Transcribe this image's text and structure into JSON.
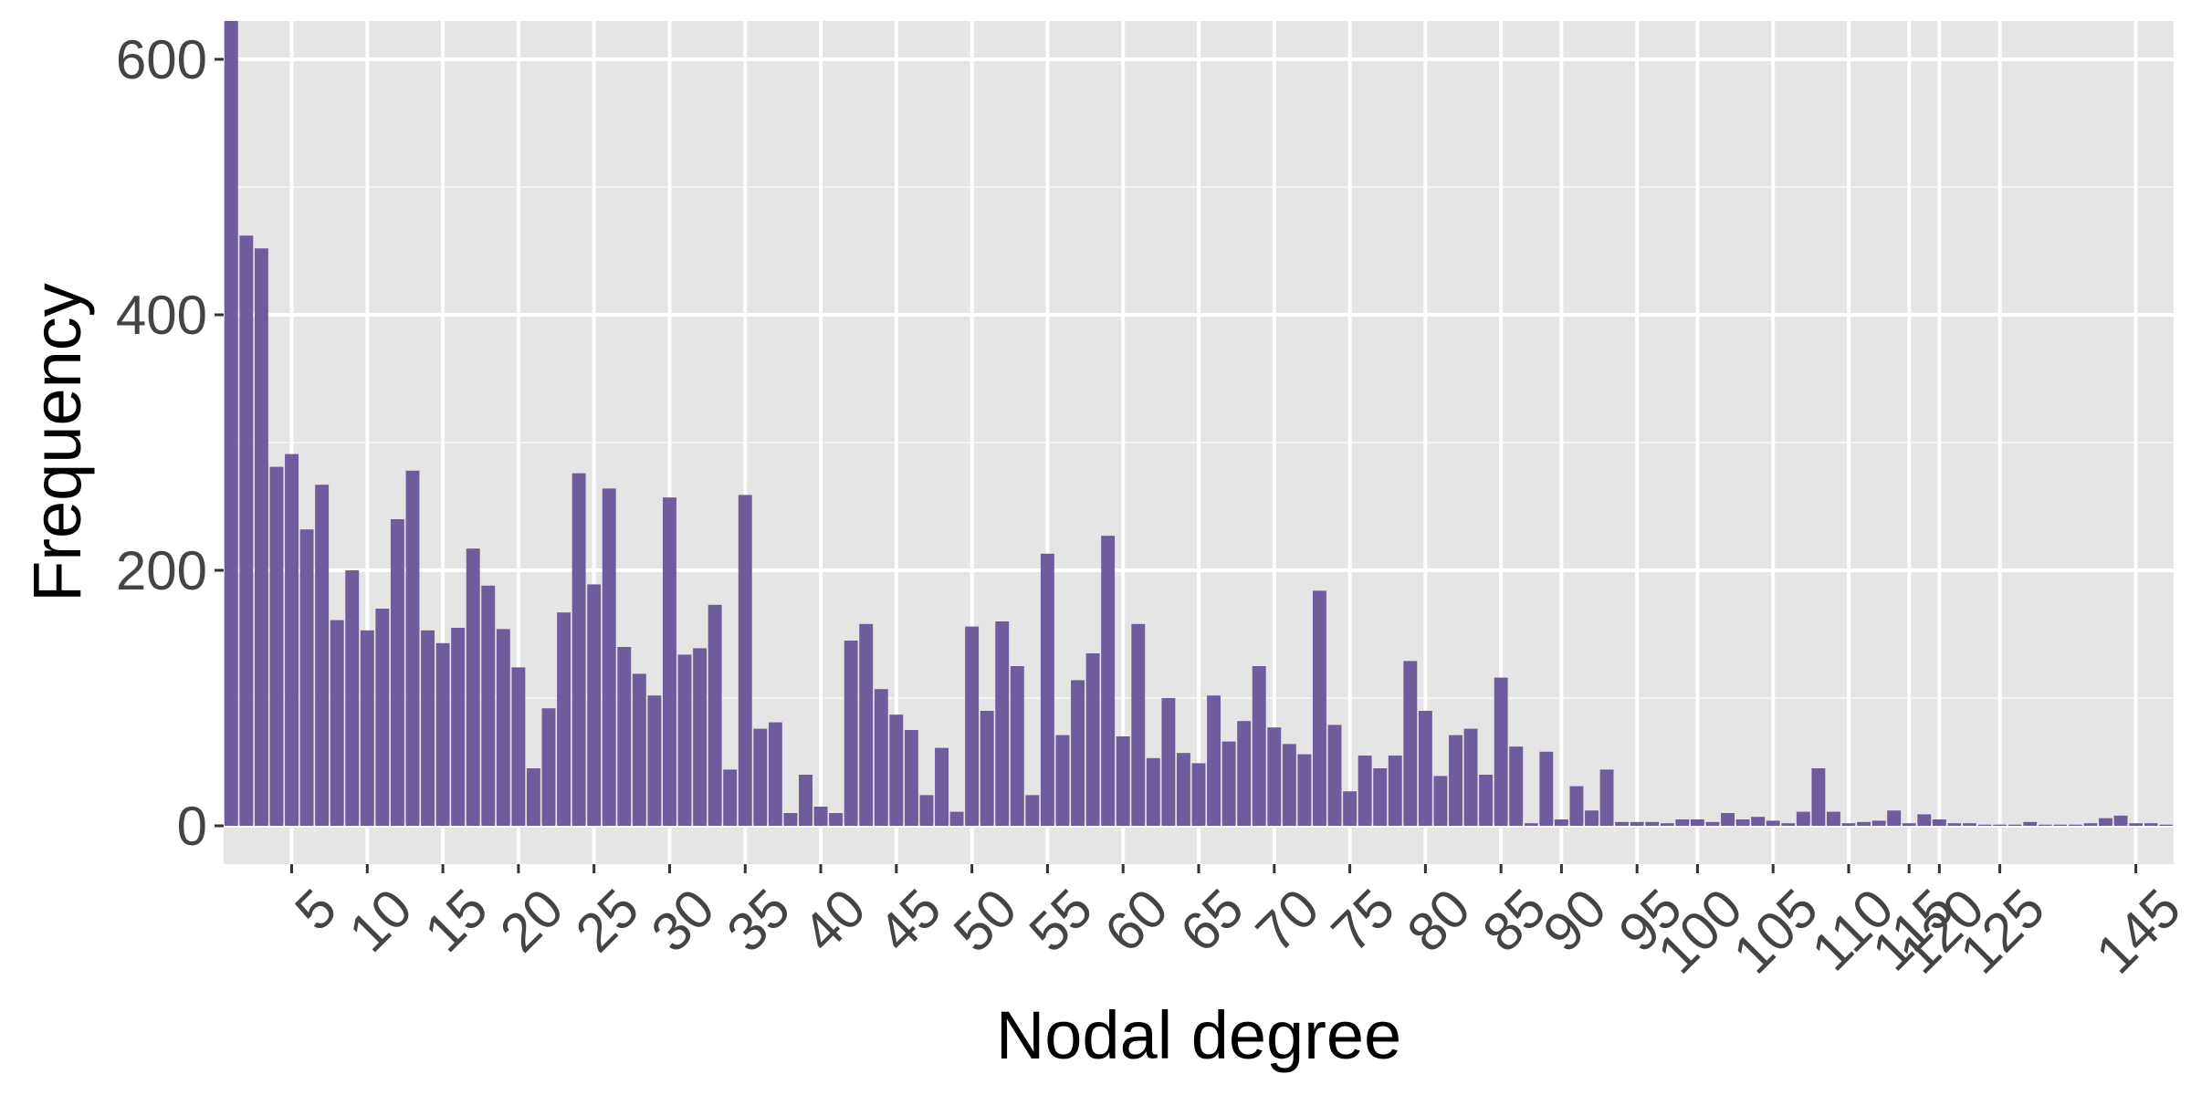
{
  "chart_data": {
    "type": "bar",
    "xlabel": "Nodal degree",
    "ylabel": "Frequency",
    "categories": [
      null,
      null,
      null,
      null,
      "5",
      null,
      null,
      null,
      null,
      "10",
      null,
      null,
      null,
      null,
      "15",
      null,
      null,
      null,
      null,
      "20",
      null,
      null,
      null,
      null,
      "25",
      null,
      null,
      null,
      null,
      "30",
      null,
      null,
      null,
      null,
      "35",
      null,
      null,
      null,
      null,
      "40",
      null,
      null,
      null,
      null,
      "45",
      null,
      null,
      null,
      null,
      "50",
      null,
      null,
      null,
      null,
      "55",
      null,
      null,
      null,
      null,
      "60",
      null,
      null,
      null,
      null,
      "65",
      null,
      null,
      null,
      null,
      "70",
      null,
      null,
      null,
      null,
      "75",
      null,
      null,
      null,
      null,
      "80",
      null,
      null,
      null,
      null,
      "85",
      null,
      null,
      null,
      "90",
      null,
      null,
      null,
      null,
      "95",
      null,
      null,
      null,
      "100",
      null,
      null,
      null,
      null,
      "105",
      null,
      null,
      null,
      null,
      "110",
      null,
      null,
      null,
      "115",
      null,
      "120",
      null,
      null,
      null,
      "125",
      null,
      null,
      null,
      null,
      null,
      null,
      null,
      null,
      "145",
      null,
      null
    ],
    "values": [
      630,
      462,
      452,
      281,
      291,
      232,
      267,
      161,
      200,
      153,
      170,
      240,
      278,
      153,
      143,
      155,
      217,
      188,
      154,
      124,
      45,
      92,
      167,
      276,
      189,
      264,
      140,
      119,
      102,
      257,
      134,
      139,
      173,
      44,
      259,
      76,
      81,
      10,
      40,
      15,
      10,
      145,
      158,
      107,
      87,
      75,
      24,
      61,
      11,
      156,
      90,
      160,
      125,
      24,
      213,
      71,
      114,
      135,
      227,
      70,
      158,
      53,
      100,
      57,
      49,
      102,
      66,
      82,
      125,
      77,
      64,
      56,
      184,
      79,
      27,
      55,
      45,
      55,
      129,
      90,
      39,
      71,
      76,
      40,
      116,
      62,
      2,
      58,
      5,
      31,
      12,
      44,
      3,
      3,
      3,
      2,
      5,
      5,
      3,
      10,
      5,
      7,
      4,
      2,
      11,
      45,
      11,
      2,
      3,
      4,
      12,
      2,
      9,
      5,
      2,
      2,
      1,
      1,
      1,
      3,
      1,
      1,
      1,
      2,
      6,
      8,
      2,
      2,
      1
    ],
    "color": "#6f5c9c",
    "ylim": [
      -30,
      630
    ],
    "yticks": [
      0,
      200,
      400,
      600
    ],
    "yminor": [
      100,
      300,
      500
    ],
    "grid": true
  }
}
